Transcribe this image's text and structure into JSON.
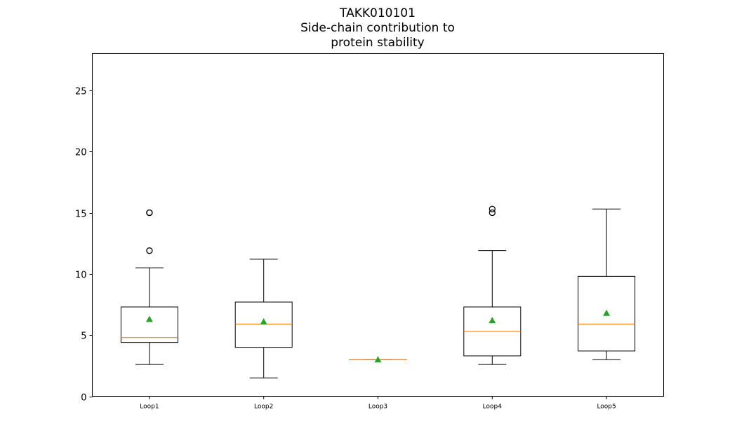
{
  "title": {
    "line1": "TAKK010101",
    "line2": "Side-chain contribution to",
    "line3": "protein stability"
  },
  "chart_data": {
    "type": "box",
    "categories": [
      "Loop1",
      "Loop2",
      "Loop3",
      "Loop4",
      "Loop5"
    ],
    "ylim": [
      0,
      28
    ],
    "yticks": [
      0,
      5,
      10,
      15,
      20,
      25
    ],
    "grid": false,
    "boxes": [
      {
        "name": "Loop1",
        "whisker_low": 2.6,
        "q1": 4.4,
        "median": 4.8,
        "q3": 7.3,
        "whisker_high": 10.5,
        "mean": 6.3,
        "outliers": [
          11.9,
          15.0,
          15.0
        ]
      },
      {
        "name": "Loop2",
        "whisker_low": 1.5,
        "q1": 4.0,
        "median": 5.9,
        "q3": 7.7,
        "whisker_high": 11.2,
        "mean": 6.1,
        "outliers": []
      },
      {
        "name": "Loop3",
        "whisker_low": 3.0,
        "q1": 3.0,
        "median": 3.0,
        "q3": 3.0,
        "whisker_high": 3.0,
        "mean": 3.0,
        "outliers": []
      },
      {
        "name": "Loop4",
        "whisker_low": 2.6,
        "q1": 3.3,
        "median": 5.3,
        "q3": 7.3,
        "whisker_high": 11.9,
        "mean": 6.2,
        "outliers": [
          15.0,
          15.3
        ]
      },
      {
        "name": "Loop5",
        "whisker_low": 3.0,
        "q1": 3.7,
        "median": 5.9,
        "q3": 9.8,
        "whisker_high": 15.3,
        "mean": 6.8,
        "outliers": []
      }
    ],
    "colors": {
      "box": "#000000",
      "median": "#ff7f0e",
      "mean": "#2ca02c",
      "outlier": "#000000"
    }
  }
}
